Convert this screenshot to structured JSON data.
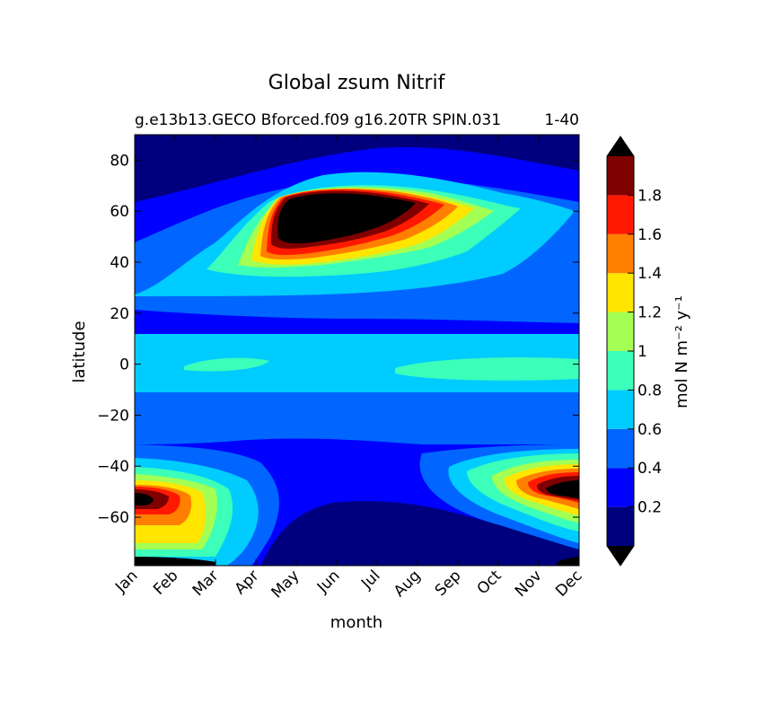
{
  "chart_data": {
    "type": "heatmap",
    "title": "Global zsum Nitrif",
    "subtitle_left": "g.e13b13.GECO Bforced.f09 g16.20TR SPIN.031",
    "subtitle_right": "1-40",
    "xlabel": "month",
    "ylabel": "latitude",
    "x_categories": [
      "Jan",
      "Feb",
      "Mar",
      "Apr",
      "May",
      "Jun",
      "Jul",
      "Aug",
      "Sep",
      "Oct",
      "Nov",
      "Dec"
    ],
    "ylim": [
      -79,
      90
    ],
    "yticks": [
      -60,
      -40,
      -20,
      0,
      20,
      40,
      60,
      80
    ],
    "colorbar": {
      "label": "mol N m⁻² y⁻¹",
      "levels": [
        0,
        0.2,
        0.4,
        0.6,
        0.8,
        1.0,
        1.2,
        1.4,
        1.6,
        1.8,
        2.0
      ],
      "tick_labels": [
        "0.2",
        "0.4",
        "0.6",
        "0.8",
        "1",
        "1.2",
        "1.4",
        "1.6",
        "1.8"
      ],
      "colors": [
        "#00007f",
        "#0000ff",
        "#0066ff",
        "#00ccff",
        "#3cffb9",
        "#a3ff53",
        "#ffe500",
        "#ff7f00",
        "#ff1900",
        "#7f0000"
      ],
      "over_color": "#000000",
      "under_color": "#000000",
      "extend": "both"
    },
    "contour_regions": [
      {
        "level": 0.2,
        "approx_extent": "lat 26 to 55 band; Southern Ocean 45S-80S; tropics -30 to 28"
      },
      {
        "level": 0.4,
        "approx_extent": "northern mid-latitudes Jan-Dec 28N-70N; southern 30S-80S"
      },
      {
        "level": 0.6,
        "approx_extent": "equatorial belt 12S-12N all months"
      },
      {
        "level": 0.8,
        "approx_extent": "equatorial patches Mar-Apr and Sep-Dec"
      },
      {
        "level": 2.0,
        "approx_extent": "peak north May-Jul 48N-68N; peak south Jan and Dec near 55S"
      }
    ]
  },
  "colors": {
    "background": "#ffffff",
    "axis": "#000000"
  }
}
